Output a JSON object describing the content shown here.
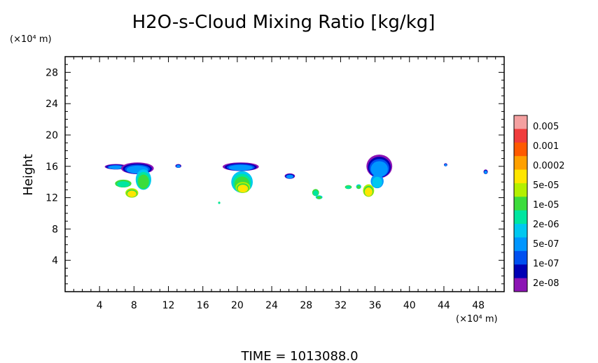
{
  "chart_data": {
    "type": "heatmap",
    "title": "H2O-s-Cloud Mixing Ratio [kg/kg]",
    "xlabel": "",
    "ylabel": "Height",
    "x_unit": "(×10⁴ m)",
    "y_unit": "(×10⁴ m)",
    "xlim": [
      0,
      51
    ],
    "ylim": [
      0,
      30
    ],
    "x_ticks": [
      "4",
      "8",
      "12",
      "16",
      "20",
      "24",
      "28",
      "32",
      "36",
      "40",
      "44",
      "48"
    ],
    "x_tick_values": [
      4,
      8,
      12,
      16,
      20,
      24,
      28,
      32,
      36,
      40,
      44,
      48
    ],
    "y_ticks": [
      "4",
      "8",
      "12",
      "16",
      "20",
      "24",
      "28"
    ],
    "y_tick_values": [
      4,
      8,
      12,
      16,
      20,
      24,
      28
    ],
    "footer": "TIME = 1013088.0",
    "colorbar": {
      "labels": [
        "0.005",
        "0.001",
        "0.0002",
        "5e-05",
        "1e-05",
        "2e-06",
        "5e-07",
        "1e-07",
        "2e-08"
      ],
      "colors": [
        "#f4a0a0",
        "#f03c3c",
        "#ff5a00",
        "#ffa000",
        "#ffe600",
        "#b4f000",
        "#3cdc3c",
        "#00e6a0",
        "#00c8f0",
        "#0096ff",
        "#0050f0",
        "#0000b4",
        "#8c14b4"
      ]
    },
    "clouds": [
      {
        "x": [
          4.6,
          7.2
        ],
        "y": [
          15.6,
          16.3
        ],
        "level": "1e-07"
      },
      {
        "x": [
          6.5,
          10.3
        ],
        "y": [
          15.0,
          16.5
        ],
        "level": "1e-07"
      },
      {
        "x": [
          8.2,
          10.0
        ],
        "y": [
          13.0,
          15.6
        ],
        "level": "2e-06"
      },
      {
        "x": [
          5.8,
          7.7
        ],
        "y": [
          13.3,
          14.3
        ],
        "level": "1e-05"
      },
      {
        "x": [
          7.0,
          8.5
        ],
        "y": [
          12.0,
          13.2
        ],
        "level": "5e-05"
      },
      {
        "x": [
          12.8,
          13.5
        ],
        "y": [
          15.8,
          16.3
        ],
        "level": "1e-07"
      },
      {
        "x": [
          17.8,
          18.0
        ],
        "y": [
          11.2,
          11.5
        ],
        "level": "1e-05"
      },
      {
        "x": [
          18.3,
          22.5
        ],
        "y": [
          15.4,
          16.5
        ],
        "level": "1e-07"
      },
      {
        "x": [
          19.3,
          21.8
        ],
        "y": [
          12.6,
          15.4
        ],
        "level": "2e-06"
      },
      {
        "x": [
          19.8,
          21.5
        ],
        "y": [
          12.6,
          14.0
        ],
        "level": "5e-05"
      },
      {
        "x": [
          25.5,
          26.7
        ],
        "y": [
          14.4,
          15.1
        ],
        "level": "1e-07"
      },
      {
        "x": [
          28.7,
          29.5
        ],
        "y": [
          12.2,
          13.1
        ],
        "level": "1e-05"
      },
      {
        "x": [
          29.1,
          29.9
        ],
        "y": [
          11.8,
          12.3
        ],
        "level": "2e-06"
      },
      {
        "x": [
          32.5,
          33.3
        ],
        "y": [
          13.1,
          13.6
        ],
        "level": "1e-05"
      },
      {
        "x": [
          33.8,
          34.4
        ],
        "y": [
          13.1,
          13.7
        ],
        "level": "2e-06"
      },
      {
        "x": [
          35.0,
          38.0
        ],
        "y": [
          14.5,
          17.5
        ],
        "level": "1e-07"
      },
      {
        "x": [
          35.5,
          37.0
        ],
        "y": [
          13.2,
          15.0
        ],
        "level": "5e-07"
      },
      {
        "x": [
          34.6,
          35.9
        ],
        "y": [
          12.1,
          13.7
        ],
        "level": "5e-05"
      },
      {
        "x": [
          44.0,
          44.4
        ],
        "y": [
          16.0,
          16.4
        ],
        "level": "1e-07"
      },
      {
        "x": [
          48.6,
          49.1
        ],
        "y": [
          15.0,
          15.6
        ],
        "level": "1e-07"
      }
    ]
  }
}
